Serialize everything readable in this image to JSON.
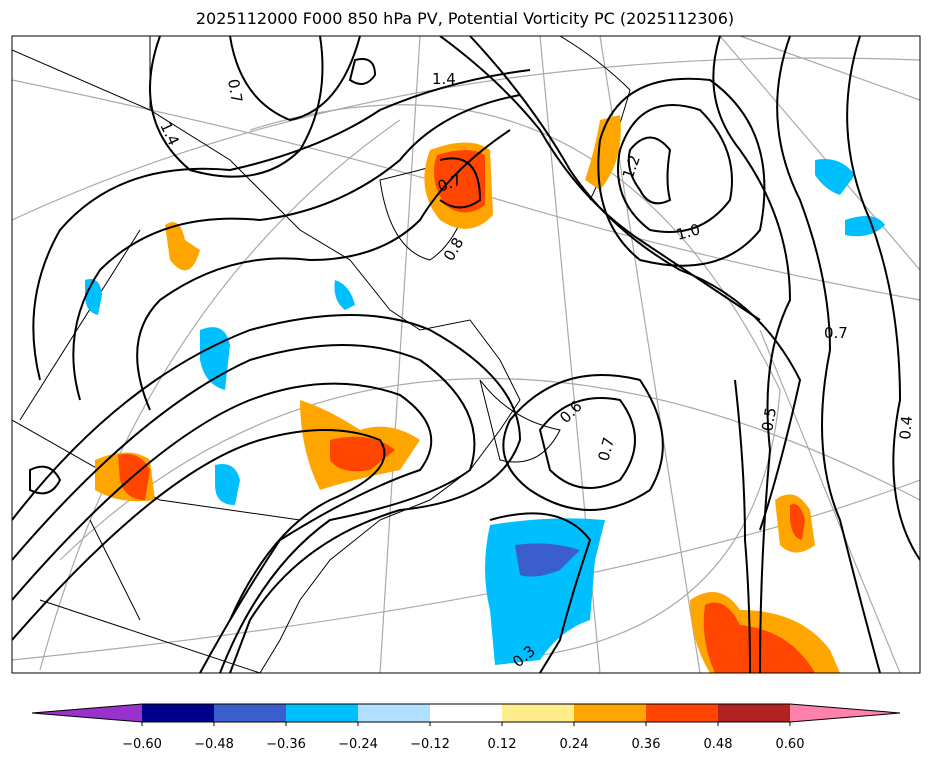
{
  "title": "2025112000 F000 850 hPa PV, Potential Vorticity PC (2025112306)",
  "contour_labels": [
    {
      "text": "1.4",
      "at": "northwest"
    },
    {
      "text": "0.7",
      "at": "north"
    },
    {
      "text": "1.4",
      "at": "north-center"
    },
    {
      "text": "0.7",
      "at": "hudson-bay"
    },
    {
      "text": "0.8",
      "at": "hudson-bay-south"
    },
    {
      "text": "1.2",
      "at": "greenland-east"
    },
    {
      "text": "1.0",
      "at": "greenland-east-south"
    },
    {
      "text": "0.7",
      "at": "east"
    },
    {
      "text": "0.6",
      "at": "newfoundland-east"
    },
    {
      "text": "0.7",
      "at": "newfoundland-east-inner"
    },
    {
      "text": "0.5",
      "at": "mid-atlantic"
    },
    {
      "text": "0.4",
      "at": "east-edge"
    },
    {
      "text": "0.3",
      "at": "south"
    }
  ],
  "colorbar": {
    "colors": [
      "#9932cc",
      "#00008b",
      "#3a5fcd",
      "#00bfff",
      "#b0e0ff",
      "#ffffff",
      "#ffec8b",
      "#ffa500",
      "#ff4500",
      "#b22222",
      "#ff82ab"
    ],
    "ticks": [
      "−0.60",
      "−0.48",
      "−0.36",
      "−0.24",
      "−0.12",
      "0.12",
      "0.24",
      "0.36",
      "0.48",
      "0.60"
    ],
    "extend": "both"
  }
}
